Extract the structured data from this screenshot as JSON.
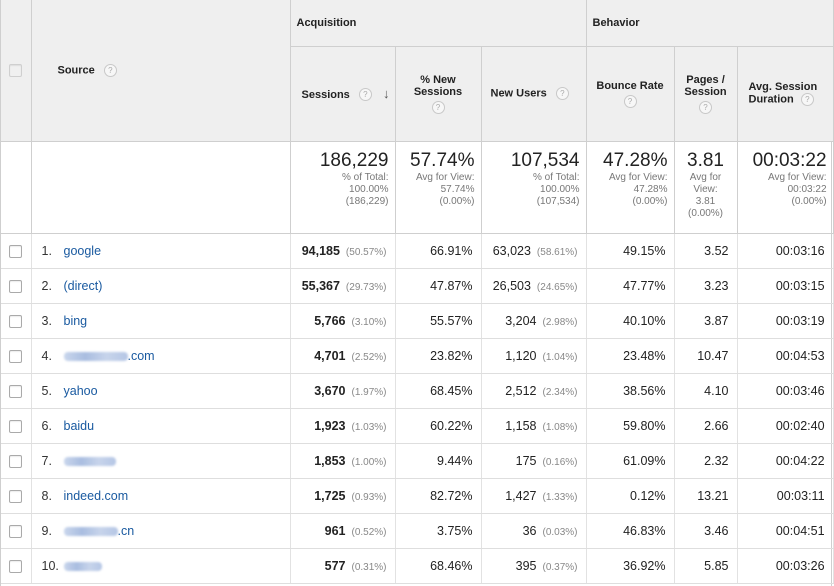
{
  "header": {
    "source_label": "Source",
    "acquisition_label": "Acquisition",
    "behavior_label": "Behavior",
    "sessions_label": "Sessions",
    "sort_indicator": "↓",
    "new_sessions_label_1": "% New",
    "new_sessions_label_2": "Sessions",
    "new_users_label": "New Users",
    "bounce_rate_label": "Bounce Rate",
    "pages_session_label_1": "Pages /",
    "pages_session_label_2": "Session",
    "avg_duration_label_1": "Avg. Session",
    "avg_duration_label_2": "Duration",
    "help_glyph": "?"
  },
  "totals": {
    "sessions": {
      "value": "186,229",
      "l1": "% of Total:",
      "l2": "100.00%",
      "l3": "(186,229)"
    },
    "new_sessions": {
      "value": "57.74%",
      "l1": "Avg for View:",
      "l2": "57.74%",
      "l3": "(0.00%)"
    },
    "new_users": {
      "value": "107,534",
      "l1": "% of Total:",
      "l2": "100.00%",
      "l3": "(107,534)"
    },
    "bounce_rate": {
      "value": "47.28%",
      "l1": "Avg for View:",
      "l2": "47.28%",
      "l3": "(0.00%)"
    },
    "pages_session": {
      "value": "3.81",
      "l1": "Avg for",
      "l2": "View:",
      "l3": "3.81",
      "l4": "(0.00%)"
    },
    "avg_duration": {
      "value": "00:03:22",
      "l1": "Avg for View:",
      "l2": "00:03:22",
      "l3": "(0.00%)"
    }
  },
  "rows": [
    {
      "idx": "1.",
      "source": "google",
      "sessions": "94,185",
      "sessions_pct": "(50.57%)",
      "new_sessions": "66.91%",
      "new_users": "63,023",
      "new_users_pct": "(58.61%)",
      "bounce": "49.15%",
      "pages": "3.52",
      "duration": "00:03:16"
    },
    {
      "idx": "2.",
      "source": "(direct)",
      "sessions": "55,367",
      "sessions_pct": "(29.73%)",
      "new_sessions": "47.87%",
      "new_users": "26,503",
      "new_users_pct": "(24.65%)",
      "bounce": "47.77%",
      "pages": "3.23",
      "duration": "00:03:15"
    },
    {
      "idx": "3.",
      "source": "bing",
      "sessions": "5,766",
      "sessions_pct": "(3.10%)",
      "new_sessions": "55.57%",
      "new_users": "3,204",
      "new_users_pct": "(2.98%)",
      "bounce": "40.10%",
      "pages": "3.87",
      "duration": "00:03:19"
    },
    {
      "idx": "4.",
      "source": ".com",
      "sessions": "4,701",
      "sessions_pct": "(2.52%)",
      "new_sessions": "23.82%",
      "new_users": "1,120",
      "new_users_pct": "(1.04%)",
      "bounce": "23.48%",
      "pages": "10.47",
      "duration": "00:04:53"
    },
    {
      "idx": "5.",
      "source": "yahoo",
      "sessions": "3,670",
      "sessions_pct": "(1.97%)",
      "new_sessions": "68.45%",
      "new_users": "2,512",
      "new_users_pct": "(2.34%)",
      "bounce": "38.56%",
      "pages": "4.10",
      "duration": "00:03:46"
    },
    {
      "idx": "6.",
      "source": "baidu",
      "sessions": "1,923",
      "sessions_pct": "(1.03%)",
      "new_sessions": "60.22%",
      "new_users": "1,158",
      "new_users_pct": "(1.08%)",
      "bounce": "59.80%",
      "pages": "2.66",
      "duration": "00:02:40"
    },
    {
      "idx": "7.",
      "source": "",
      "sessions": "1,853",
      "sessions_pct": "(1.00%)",
      "new_sessions": "9.44%",
      "new_users": "175",
      "new_users_pct": "(0.16%)",
      "bounce": "61.09%",
      "pages": "2.32",
      "duration": "00:04:22"
    },
    {
      "idx": "8.",
      "source": "indeed.com",
      "sessions": "1,725",
      "sessions_pct": "(0.93%)",
      "new_sessions": "82.72%",
      "new_users": "1,427",
      "new_users_pct": "(1.33%)",
      "bounce": "0.12%",
      "pages": "13.21",
      "duration": "00:03:11"
    },
    {
      "idx": "9.",
      "source": ".cn",
      "sessions": "961",
      "sessions_pct": "(0.52%)",
      "new_sessions": "3.75%",
      "new_users": "36",
      "new_users_pct": "(0.03%)",
      "bounce": "46.83%",
      "pages": "3.46",
      "duration": "00:04:51"
    },
    {
      "idx": "10.",
      "source": "",
      "sessions": "577",
      "sessions_pct": "(0.31%)",
      "new_sessions": "68.46%",
      "new_users": "395",
      "new_users_pct": "(0.37%)",
      "bounce": "36.92%",
      "pages": "5.85",
      "duration": "00:03:26"
    }
  ],
  "colors": {
    "link": "#1a5aa0",
    "header_bg": "#efefef",
    "border": "#cfcfcf"
  }
}
